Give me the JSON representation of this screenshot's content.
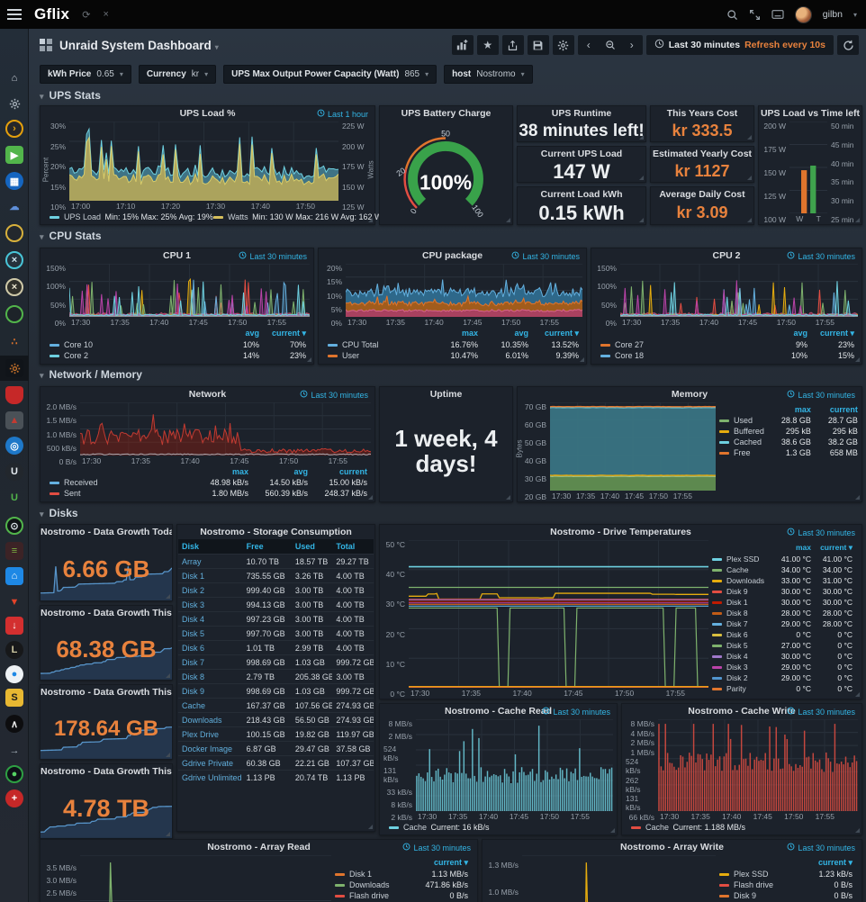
{
  "topnav": {
    "brand": "Gflix",
    "user": "gilbn"
  },
  "header": {
    "title": "Unraid System Dashboard",
    "time_range": "Last 30 minutes",
    "refresh_interval": "Refresh every 10s"
  },
  "variables": [
    {
      "label": "kWh Price",
      "value": "0.65"
    },
    {
      "label": "Currency",
      "value": "kr"
    },
    {
      "label": "UPS Max Output Power Capacity (Watt)",
      "value": "865"
    },
    {
      "label": "host",
      "value": "Nostromo"
    }
  ],
  "section_labels": [
    "UPS Stats",
    "CPU Stats",
    "Network / Memory",
    "Disks"
  ],
  "sidebar_apps": [
    {
      "name": "home-icon",
      "glyph": "⌂",
      "fg": "#c6ced6",
      "bg": "none"
    },
    {
      "name": "settings-gear-icon",
      "glyph": "gear",
      "fg": "#aab4bd",
      "bg": "none"
    },
    {
      "name": "tautulli-icon",
      "glyph": "›",
      "fg": "#e5a00d",
      "bg": "#26262a",
      "border": "#e5a00d",
      "circle": true
    },
    {
      "name": "emby-play-icon",
      "glyph": "▶",
      "fg": "#ffffff",
      "bg": "#52b54b"
    },
    {
      "name": "movie-app-icon",
      "glyph": "▦",
      "fg": "#ffffff",
      "bg": "#1565c0",
      "circle": true
    },
    {
      "name": "cloud-app-icon",
      "glyph": "☁",
      "fg": "#5f8fd9",
      "bg": "none"
    },
    {
      "name": "search-app-icon",
      "glyph": "",
      "fg": "#d8b13c",
      "bg": "#23282d",
      "border": "#d8b13c",
      "circle": true
    },
    {
      "name": "jackett-x-icon",
      "glyph": "×",
      "fg": "#cfe6ef",
      "bg": "#25313c",
      "border": "#49c5d8",
      "circle": true
    },
    {
      "name": "x-app-icon",
      "glyph": "×",
      "fg": "#efe9d2",
      "bg": "#30302a",
      "border": "#cfc9a8",
      "circle": true
    },
    {
      "name": "green-ring-icon",
      "glyph": "",
      "fg": "#52b54b",
      "bg": "#1d2329",
      "border": "#52b54b",
      "circle": true
    },
    {
      "name": "nodes-app-icon",
      "glyph": "∴",
      "fg": "#e0752d",
      "bg": "none"
    },
    {
      "name": "unraid-settings-gear-icon",
      "glyph": "gear",
      "fg": "#c2702a",
      "bg": "#101419",
      "active": true
    },
    {
      "name": "shield-app-icon",
      "glyph": "",
      "fg": "#ffffff",
      "bg": "#c62828",
      "shield": true
    },
    {
      "name": "triangles-app-icon",
      "glyph": "▲",
      "fg": "#c23b32",
      "bg": "#4a5157"
    },
    {
      "name": "blue-gear-eye-icon",
      "glyph": "◎",
      "fg": "#ffffff",
      "bg": "#1e78c8",
      "circle": true
    },
    {
      "name": "ubiquiti-icon",
      "glyph": "U",
      "fg": "#e6ecf1",
      "bg": "#22272d",
      "circle": true
    },
    {
      "name": "unraid-u-icon",
      "glyph": "U",
      "fg": "#52b54b",
      "bg": "none"
    },
    {
      "name": "dish-app-icon",
      "glyph": "⊙",
      "fg": "#d8e0e6",
      "bg": "#101417",
      "border": "#52b54b",
      "circle": true
    },
    {
      "name": "traffic-bars-icon",
      "glyph": "≡",
      "fg": "#7cb342",
      "bg": "#3c2326"
    },
    {
      "name": "home-assistant-icon",
      "glyph": "⌂",
      "fg": "#ffffff",
      "bg": "#1e88e5"
    },
    {
      "name": "gitlab-icon",
      "glyph": "▼",
      "fg": "#e24329",
      "bg": "none"
    },
    {
      "name": "download-shield-icon",
      "glyph": "↓",
      "fg": "#ffffff",
      "bg": "#d32f2f"
    },
    {
      "name": "lazylibrarian-icon",
      "glyph": "L",
      "fg": "#cfc9a3",
      "bg": "#17181a",
      "circle": true
    },
    {
      "name": "waterdrop-icon",
      "glyph": "●",
      "fg": "#1e88e5",
      "bg": "#eef2f5",
      "circle": true
    },
    {
      "name": "sub-app-icon",
      "glyph": "S",
      "fg": "#1b1b1b",
      "bg": "#e8b832"
    },
    {
      "name": "jacket-icon",
      "glyph": "∧",
      "fg": "#e8e8e8",
      "bg": "#0d0d0f",
      "circle": true
    },
    {
      "name": "sign-out-icon",
      "glyph": "→",
      "fg": "#aeb9c2",
      "bg": "none"
    },
    {
      "name": "github-icon",
      "glyph": "●",
      "fg": "#56d364",
      "bg": "#0d1117",
      "border": "#2ea043",
      "circle": true
    },
    {
      "name": "chip-app-icon",
      "glyph": "+",
      "fg": "#ffffff",
      "bg": "#c62828",
      "circle": true
    }
  ],
  "panels": {
    "ups_load": {
      "title": "UPS Load %",
      "time": "Last 1 hour",
      "axis_left": "Percent",
      "axis_right": "Watts",
      "y_left": [
        "30%",
        "25%",
        "20%",
        "15%",
        "10%"
      ],
      "y_right": [
        "225 W",
        "200 W",
        "175 W",
        "150 W",
        "125 W"
      ],
      "x": [
        "17:00",
        "17:10",
        "17:20",
        "17:30",
        "17:40",
        "17:50"
      ],
      "legend": [
        {
          "label": "UPS Load",
          "stats": "Min: 15%  Max: 25%  Avg: 19%",
          "color": "#6ed0e0"
        },
        {
          "label": "Watts",
          "stats": "Min: 130 W  Max: 216 W  Avg: 162 W",
          "color": "#d6bf5c"
        }
      ]
    },
    "ups_gauge": {
      "title": "UPS Battery Charge",
      "value": "100%",
      "ticks": [
        "0",
        "20",
        "50",
        "100"
      ]
    },
    "ups_runtime": {
      "title": "UPS Runtime",
      "value": "38 minutes left!"
    },
    "ups_current": {
      "title": "Current UPS Load",
      "value": "147 W"
    },
    "ups_kwh": {
      "title": "Current Load kWh",
      "value": "0.15 kWh"
    },
    "cost_year": {
      "title": "This Years Cost",
      "value": "kr 333.5"
    },
    "cost_est": {
      "title": "Estimated Yearly Cost",
      "value": "kr 1127"
    },
    "cost_daily": {
      "title": "Average Daily Cost",
      "value": "kr 3.09"
    },
    "ups_bar": {
      "title": "UPS Load vs Time left",
      "y_left": [
        "200 W",
        "175 W",
        "150 W",
        "125 W",
        "100 W"
      ],
      "y_right": [
        "50 min",
        "45 min",
        "40 min",
        "35 min",
        "30 min",
        "25 min"
      ],
      "x": [
        "W",
        "T"
      ],
      "bars": [
        {
          "label": "W",
          "color": "#e0752d",
          "frac": 0.47
        },
        {
          "label": "T",
          "color": "#3fa34d",
          "frac": 0.52
        }
      ]
    },
    "cpu1": {
      "title": "CPU 1",
      "time": "Last 30 minutes",
      "y": [
        "150%",
        "100%",
        "50%",
        "0%"
      ],
      "x": [
        "17:30",
        "17:35",
        "17:40",
        "17:45",
        "17:50",
        "17:55"
      ],
      "cols": [
        "avg",
        "current ▾"
      ],
      "legend": [
        {
          "label": "Core 10",
          "color": "#64b0df",
          "values": [
            "10%",
            "70%"
          ]
        },
        {
          "label": "Core 2",
          "color": "#6ed0e0",
          "values": [
            "14%",
            "23%"
          ]
        }
      ]
    },
    "cpu_pkg": {
      "title": "CPU package",
      "time": "Last 30 minutes",
      "y": [
        "20%",
        "15%",
        "10%",
        "5%",
        "0%"
      ],
      "x": [
        "17:30",
        "17:35",
        "17:40",
        "17:45",
        "17:50",
        "17:55"
      ],
      "cols": [
        "max",
        "avg",
        "current ▾"
      ],
      "legend": [
        {
          "label": "CPU Total",
          "color": "#64b0df",
          "values": [
            "16.76%",
            "10.35%",
            "13.52%"
          ]
        },
        {
          "label": "User",
          "color": "#e0752d",
          "values": [
            "10.47%",
            "6.01%",
            "9.39%"
          ]
        }
      ]
    },
    "cpu2": {
      "title": "CPU 2",
      "time": "Last 30 minutes",
      "y": [
        "150%",
        "100%",
        "50%",
        "0%"
      ],
      "x": [
        "17:30",
        "17:35",
        "17:40",
        "17:45",
        "17:50",
        "17:55"
      ],
      "cols": [
        "avg",
        "current ▾"
      ],
      "legend": [
        {
          "label": "Core 27",
          "color": "#e0752d",
          "values": [
            "9%",
            "23%"
          ]
        },
        {
          "label": "Core 18",
          "color": "#64b0df",
          "values": [
            "10%",
            "15%"
          ]
        }
      ]
    },
    "network": {
      "title": "Network",
      "time": "Last 30 minutes",
      "y": [
        "2.0 MB/s",
        "1.5 MB/s",
        "1.0 MB/s",
        "500 kB/s",
        "0 B/s"
      ],
      "x": [
        "17:30",
        "17:35",
        "17:40",
        "17:45",
        "17:50",
        "17:55"
      ],
      "cols": [
        "max",
        "avg",
        "current"
      ],
      "legend": [
        {
          "label": "Received",
          "color": "#64b0df",
          "values": [
            "48.98 kB/s",
            "14.50 kB/s",
            "15.00 kB/s"
          ]
        },
        {
          "label": "Sent",
          "color": "#e24d42",
          "values": [
            "1.80 MB/s",
            "560.39 kB/s",
            "248.37 kB/s"
          ]
        }
      ]
    },
    "uptime": {
      "title": "Uptime",
      "value": "1 week, 4 days!"
    },
    "memory": {
      "title": "Memory",
      "time": "Last 30 minutes",
      "axis_left": "Bytes",
      "y": [
        "70 GB",
        "60 GB",
        "50 GB",
        "40 GB",
        "30 GB",
        "20 GB"
      ],
      "x": [
        "17:30",
        "17:35",
        "17:40",
        "17:45",
        "17:50",
        "17:55"
      ],
      "cols": [
        "max",
        "current"
      ],
      "legend": [
        {
          "label": "Used",
          "color": "#7eb26d",
          "values": [
            "28.8 GB",
            "28.7 GB"
          ]
        },
        {
          "label": "Buffered",
          "color": "#e5ac0e",
          "values": [
            "295 kB",
            "295 kB"
          ]
        },
        {
          "label": "Cached",
          "color": "#6ed0e0",
          "values": [
            "38.6 GB",
            "38.2 GB"
          ]
        },
        {
          "label": "Free",
          "color": "#e0752d",
          "values": [
            "1.3 GB",
            "658 MB"
          ]
        }
      ]
    },
    "growth_today": {
      "title": "Nostromo - Data Growth Today",
      "value": "6.66 GB"
    },
    "growth_week": {
      "title": "Nostromo - Data Growth This Week",
      "value": "68.38 GB"
    },
    "growth_month": {
      "title": "Nostromo - Data Growth This Month",
      "value": "178.64 GB"
    },
    "growth_year": {
      "title": "Nostromo - Data Growth This Year",
      "value": "4.78 TB"
    },
    "storage": {
      "title": "Nostromo - Storage Consumption",
      "headers": [
        "Disk",
        "Free",
        "Used",
        "Total"
      ],
      "rows": [
        [
          "Array",
          "10.70 TB",
          "18.57 TB",
          "29.27 TB"
        ],
        [
          "Disk 1",
          "735.55 GB",
          "3.26 TB",
          "4.00 TB"
        ],
        [
          "Disk 2",
          "999.40 GB",
          "3.00 TB",
          "4.00 TB"
        ],
        [
          "Disk 3",
          "994.13 GB",
          "3.00 TB",
          "4.00 TB"
        ],
        [
          "Disk 4",
          "997.23 GB",
          "3.00 TB",
          "4.00 TB"
        ],
        [
          "Disk 5",
          "997.70 GB",
          "3.00 TB",
          "4.00 TB"
        ],
        [
          "Disk 6",
          "1.01 TB",
          "2.99 TB",
          "4.00 TB"
        ],
        [
          "Disk 7",
          "998.69 GB",
          "1.03 GB",
          "999.72 GB"
        ],
        [
          "Disk 8",
          "2.79 TB",
          "205.38 GB",
          "3.00 TB"
        ],
        [
          "Disk 9",
          "998.69 GB",
          "1.03 GB",
          "999.72 GB"
        ],
        [
          "Cache",
          "167.37 GB",
          "107.56 GB",
          "274.93 GB"
        ],
        [
          "Downloads",
          "218.43 GB",
          "56.50 GB",
          "274.93 GB"
        ],
        [
          "Plex Drive",
          "100.15 GB",
          "19.82 GB",
          "119.97 GB"
        ],
        [
          "Docker Image",
          "6.87 GB",
          "29.47 GB",
          "37.58 GB"
        ],
        [
          "Gdrive Private",
          "60.38 GB",
          "22.21 GB",
          "107.37 GB"
        ],
        [
          "Gdrive Unlimited",
          "1.13 PB",
          "20.74 TB",
          "1.13 PB"
        ]
      ]
    },
    "drive_temps": {
      "title": "Nostromo - Drive Temperatures",
      "time": "Last 30 minutes",
      "y": [
        "50 °C",
        "40 °C",
        "30 °C",
        "20 °C",
        "10 °C",
        "0 °C"
      ],
      "x": [
        "17:30",
        "17:35",
        "17:40",
        "17:45",
        "17:50",
        "17:55"
      ],
      "cols": [
        "max",
        "current ▾"
      ],
      "legend": [
        {
          "label": "Plex SSD",
          "color": "#6ed0e0",
          "values": [
            "41.00 °C",
            "41.00 °C"
          ]
        },
        {
          "label": "Cache",
          "color": "#7eb26d",
          "values": [
            "34.00 °C",
            "34.00 °C"
          ]
        },
        {
          "label": "Downloads",
          "color": "#e5ac0e",
          "values": [
            "33.00 °C",
            "31.00 °C"
          ]
        },
        {
          "label": "Disk 9",
          "color": "#e24d42",
          "values": [
            "30.00 °C",
            "30.00 °C"
          ]
        },
        {
          "label": "Disk 1",
          "color": "#bf1b00",
          "values": [
            "30.00 °C",
            "30.00 °C"
          ]
        },
        {
          "label": "Disk 8",
          "color": "#c15c17",
          "values": [
            "28.00 °C",
            "28.00 °C"
          ]
        },
        {
          "label": "Disk 7",
          "color": "#64b0df",
          "values": [
            "29.00 °C",
            "28.00 °C"
          ]
        },
        {
          "label": "Disk 6",
          "color": "#d9bf3f",
          "values": [
            "0 °C",
            "0 °C"
          ]
        },
        {
          "label": "Disk 5",
          "color": "#7eb26d",
          "values": [
            "27.00 °C",
            "0 °C"
          ]
        },
        {
          "label": "Disk 4",
          "color": "#9f78c9",
          "values": [
            "30.00 °C",
            "0 °C"
          ]
        },
        {
          "label": "Disk 3",
          "color": "#ba43a9",
          "values": [
            "29.00 °C",
            "0 °C"
          ]
        },
        {
          "label": "Disk 2",
          "color": "#5195ce",
          "values": [
            "29.00 °C",
            "0 °C"
          ]
        },
        {
          "label": "Parity",
          "color": "#e0752d",
          "values": [
            "0 °C",
            "0 °C"
          ]
        }
      ]
    },
    "cache_read": {
      "title": "Nostromo - Cache Read",
      "time": "Last 30 minutes",
      "y": [
        "8 MB/s",
        "2 MB/s",
        "524 kB/s",
        "131 kB/s",
        "33 kB/s",
        "8 kB/s",
        "2 kB/s"
      ],
      "x": [
        "17:30",
        "17:35",
        "17:40",
        "17:45",
        "17:50",
        "17:55"
      ],
      "legend": [
        {
          "label": "Cache",
          "stats": "Current: 16 kB/s",
          "color": "#6ed0e0"
        }
      ]
    },
    "cache_write": {
      "title": "Nostromo - Cache Write",
      "time": "Last 30 minutes",
      "y": [
        "8 MB/s",
        "4 MB/s",
        "2 MB/s",
        "1 MB/s",
        "524 kB/s",
        "262 kB/s",
        "131 kB/s",
        "66 kB/s"
      ],
      "x": [
        "17:30",
        "17:35",
        "17:40",
        "17:45",
        "17:50",
        "17:55"
      ],
      "legend": [
        {
          "label": "Cache",
          "stats": "Current: 1.188 MB/s",
          "color": "#e24d42"
        }
      ]
    },
    "array_read": {
      "title": "Nostromo - Array Read",
      "time": "Last 30 minutes",
      "y": [
        "3.5 MB/s",
        "3.0 MB/s",
        "2.5 MB/s"
      ],
      "cols": [
        "current ▾"
      ],
      "legend": [
        {
          "label": "Disk 1",
          "color": "#e0752d",
          "values": [
            "1.13 MB/s"
          ]
        },
        {
          "label": "Downloads",
          "color": "#7eb26d",
          "values": [
            "471.86 kB/s"
          ]
        },
        {
          "label": "Flash drive",
          "color": "#e24d42",
          "values": [
            "0 B/s"
          ]
        },
        {
          "label": "Disk 9",
          "color": "#e5ac0e",
          "values": [
            "0 B/s"
          ]
        }
      ]
    },
    "array_write": {
      "title": "Nostromo - Array Write",
      "time": "Last 30 minutes",
      "y": [
        "1.3 MB/s",
        "1.0 MB/s"
      ],
      "cols": [
        "current ▾"
      ],
      "legend": [
        {
          "label": "Plex SSD",
          "color": "#e5ac0e",
          "values": [
            "1.23 kB/s"
          ]
        },
        {
          "label": "Flash drive",
          "color": "#e24d42",
          "values": [
            "0 B/s"
          ]
        },
        {
          "label": "Disk 9",
          "color": "#e0752d",
          "values": [
            "0 B/s"
          ]
        }
      ]
    }
  },
  "colors": {
    "accent_blue": "#33b5e5",
    "accent_orange": "#e8823d",
    "panel_bg": "#1c222b",
    "page_bg": "#232a33"
  }
}
